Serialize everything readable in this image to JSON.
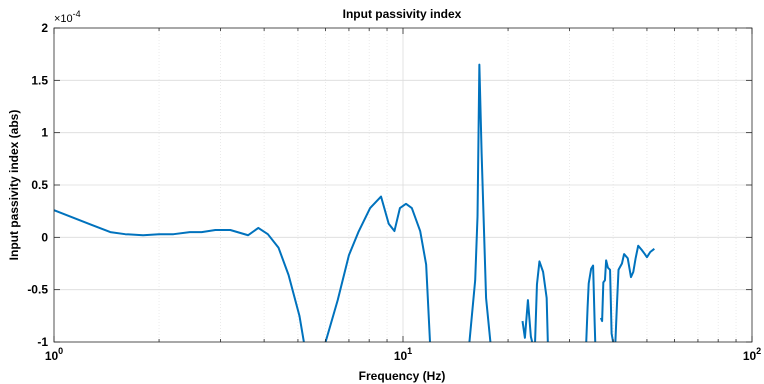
{
  "chart_data": {
    "type": "line",
    "title": "Input passivity index",
    "xlabel": "Frequency (Hz)",
    "ylabel": "Input passivity index (abs)",
    "xscale": "log",
    "xlim": [
      1,
      100
    ],
    "ylim": [
      -0.0001,
      0.0002
    ],
    "xticks": [
      {
        "value": 1,
        "base": "10",
        "exp": "0"
      },
      {
        "value": 10,
        "base": "10",
        "exp": "1"
      },
      {
        "value": 100,
        "base": "10",
        "exp": "2"
      }
    ],
    "yticks": [
      {
        "value": -0.0001,
        "label": "-1"
      },
      {
        "value": -5e-05,
        "label": "-0.5"
      },
      {
        "value": 0,
        "label": "0"
      },
      {
        "value": 5e-05,
        "label": "0.5"
      },
      {
        "value": 0.0001,
        "label": "1"
      },
      {
        "value": 0.00015,
        "label": "1.5"
      },
      {
        "value": 0.0002,
        "label": "2"
      }
    ],
    "y_multiplier": {
      "base": "×10",
      "exp": "-4"
    },
    "grid": true,
    "minor_grid": true,
    "series": [
      {
        "color": "#0072BD",
        "segments": [
          [
            [
              1.0,
              2.6e-05
            ],
            [
              1.28,
              1.2e-05
            ],
            [
              1.45,
              5e-06
            ],
            [
              1.6,
              3e-06
            ],
            [
              1.8,
              2e-06
            ],
            [
              2.0,
              3e-06
            ],
            [
              2.2,
              3e-06
            ],
            [
              2.45,
              5e-06
            ],
            [
              2.65,
              5e-06
            ],
            [
              2.9,
              7e-06
            ],
            [
              3.2,
              7e-06
            ],
            [
              3.6,
              2e-06
            ],
            [
              3.85,
              9e-06
            ],
            [
              4.1,
              3e-06
            ],
            [
              4.4,
              -1e-05
            ],
            [
              4.7,
              -3.6e-05
            ],
            [
              5.05,
              -7.5e-05
            ],
            [
              5.2,
              -0.0001
            ]
          ],
          [
            [
              6.0,
              -0.0001
            ],
            [
              6.5,
              -6e-05
            ],
            [
              7.0,
              -1.7e-05
            ],
            [
              7.45,
              5e-06
            ],
            [
              8.05,
              2.8e-05
            ],
            [
              8.65,
              3.9e-05
            ],
            [
              9.1,
              1.3e-05
            ],
            [
              9.45,
              6e-06
            ],
            [
              9.8,
              2.8e-05
            ],
            [
              10.2,
              3.2e-05
            ],
            [
              10.6,
              2.8e-05
            ],
            [
              11.2,
              6e-06
            ],
            [
              11.65,
              -2.6e-05
            ],
            [
              11.95,
              -0.0001
            ]
          ],
          [
            [
              15.5,
              -0.0001
            ],
            [
              16.1,
              -4.1e-05
            ],
            [
              16.35,
              2e-05
            ],
            [
              16.55,
              0.000165
            ],
            [
              16.8,
              8e-05
            ],
            [
              17.3,
              -5.8e-05
            ],
            [
              17.8,
              -0.0001
            ]
          ],
          [
            [
              22.0,
              -8e-05
            ],
            [
              22.35,
              -9.6e-05
            ],
            [
              22.8,
              -6e-05
            ],
            [
              23.25,
              -9.5e-05
            ],
            [
              23.45,
              -0.0001
            ]
          ],
          [
            [
              23.9,
              -0.0001
            ],
            [
              24.2,
              -4.5e-05
            ],
            [
              24.6,
              -2.3e-05
            ],
            [
              25.2,
              -3.3e-05
            ],
            [
              25.8,
              -5.8e-05
            ],
            [
              26.0,
              -0.0001
            ]
          ],
          [
            [
              33.5,
              -0.0001
            ],
            [
              33.8,
              -6.7e-05
            ],
            [
              34.05,
              -4.4e-05
            ],
            [
              34.6,
              -3e-05
            ],
            [
              35.05,
              -2.7e-05
            ],
            [
              35.4,
              -8e-05
            ],
            [
              35.55,
              -0.0001
            ]
          ],
          [
            [
              36.9,
              -7.7e-05
            ],
            [
              37.2,
              -8e-05
            ],
            [
              37.5,
              -4.3e-05
            ],
            [
              37.9,
              -4.1e-05
            ],
            [
              38.2,
              -2.2e-05
            ],
            [
              38.65,
              -2.9e-05
            ],
            [
              39.2,
              -3.1e-05
            ],
            [
              39.6,
              -9.2e-05
            ],
            [
              40.0,
              -0.0001
            ]
          ],
          [
            [
              40.6,
              -0.0001
            ],
            [
              41.05,
              -6.2e-05
            ],
            [
              41.45,
              -3.1e-05
            ],
            [
              42.4,
              -2.5e-05
            ],
            [
              43.0,
              -1.6e-05
            ],
            [
              44.05,
              -2e-05
            ],
            [
              45.0,
              -3.8e-05
            ],
            [
              45.7,
              -3.3e-05
            ],
            [
              46.4,
              -2e-05
            ],
            [
              47.2,
              -8e-06
            ],
            [
              48.3,
              -1.2e-05
            ],
            [
              49.3,
              -1.6e-05
            ],
            [
              50.0,
              -1.9e-05
            ],
            [
              51.1,
              -1.4e-05
            ],
            [
              52.5,
              -1.1e-05
            ]
          ]
        ]
      }
    ]
  }
}
